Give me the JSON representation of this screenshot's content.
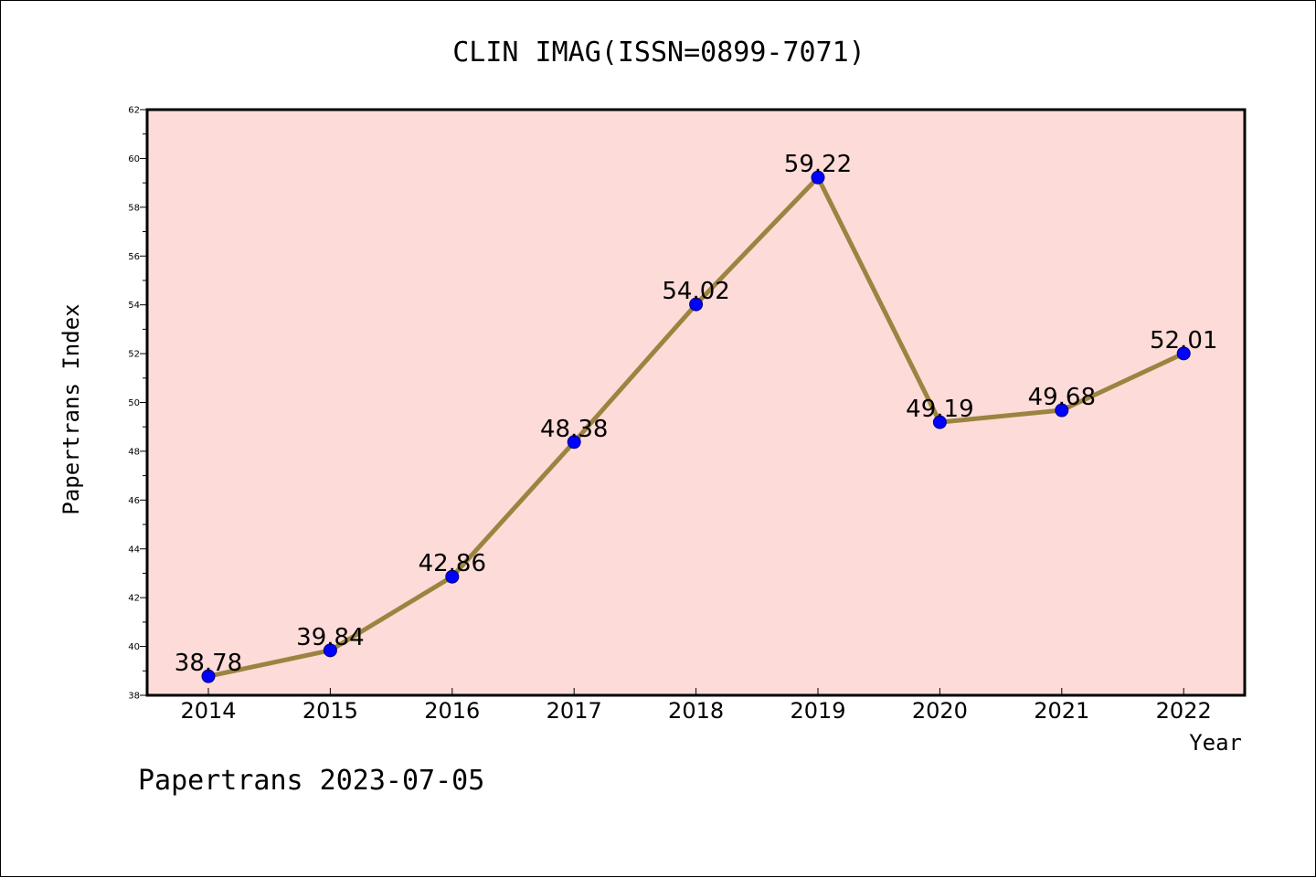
{
  "chart_data": {
    "type": "line",
    "title": "CLIN IMAG(ISSN=0899-7071)",
    "xlabel": "Year",
    "ylabel": "Papertrans Index",
    "categories": [
      "2014",
      "2015",
      "2016",
      "2017",
      "2018",
      "2019",
      "2020",
      "2021",
      "2022"
    ],
    "values": [
      38.78,
      39.84,
      42.86,
      48.38,
      54.02,
      59.22,
      49.19,
      49.68,
      52.01
    ],
    "data_labels": [
      "38.78",
      "39.84",
      "42.86",
      "48.38",
      "54.02",
      "59.22",
      "49.19",
      "49.68",
      "52.01"
    ],
    "ylim": [
      38,
      62
    ],
    "yticks": [
      38,
      40,
      42,
      44,
      46,
      48,
      50,
      52,
      54,
      56,
      58,
      60,
      62
    ],
    "grid": false,
    "legend": "none",
    "colors": {
      "plot_background": "#fddbd8",
      "line": "#9b8440",
      "marker": "#0000ff",
      "marker_edge": "#000080"
    }
  },
  "footer": "Papertrans 2023-07-05"
}
